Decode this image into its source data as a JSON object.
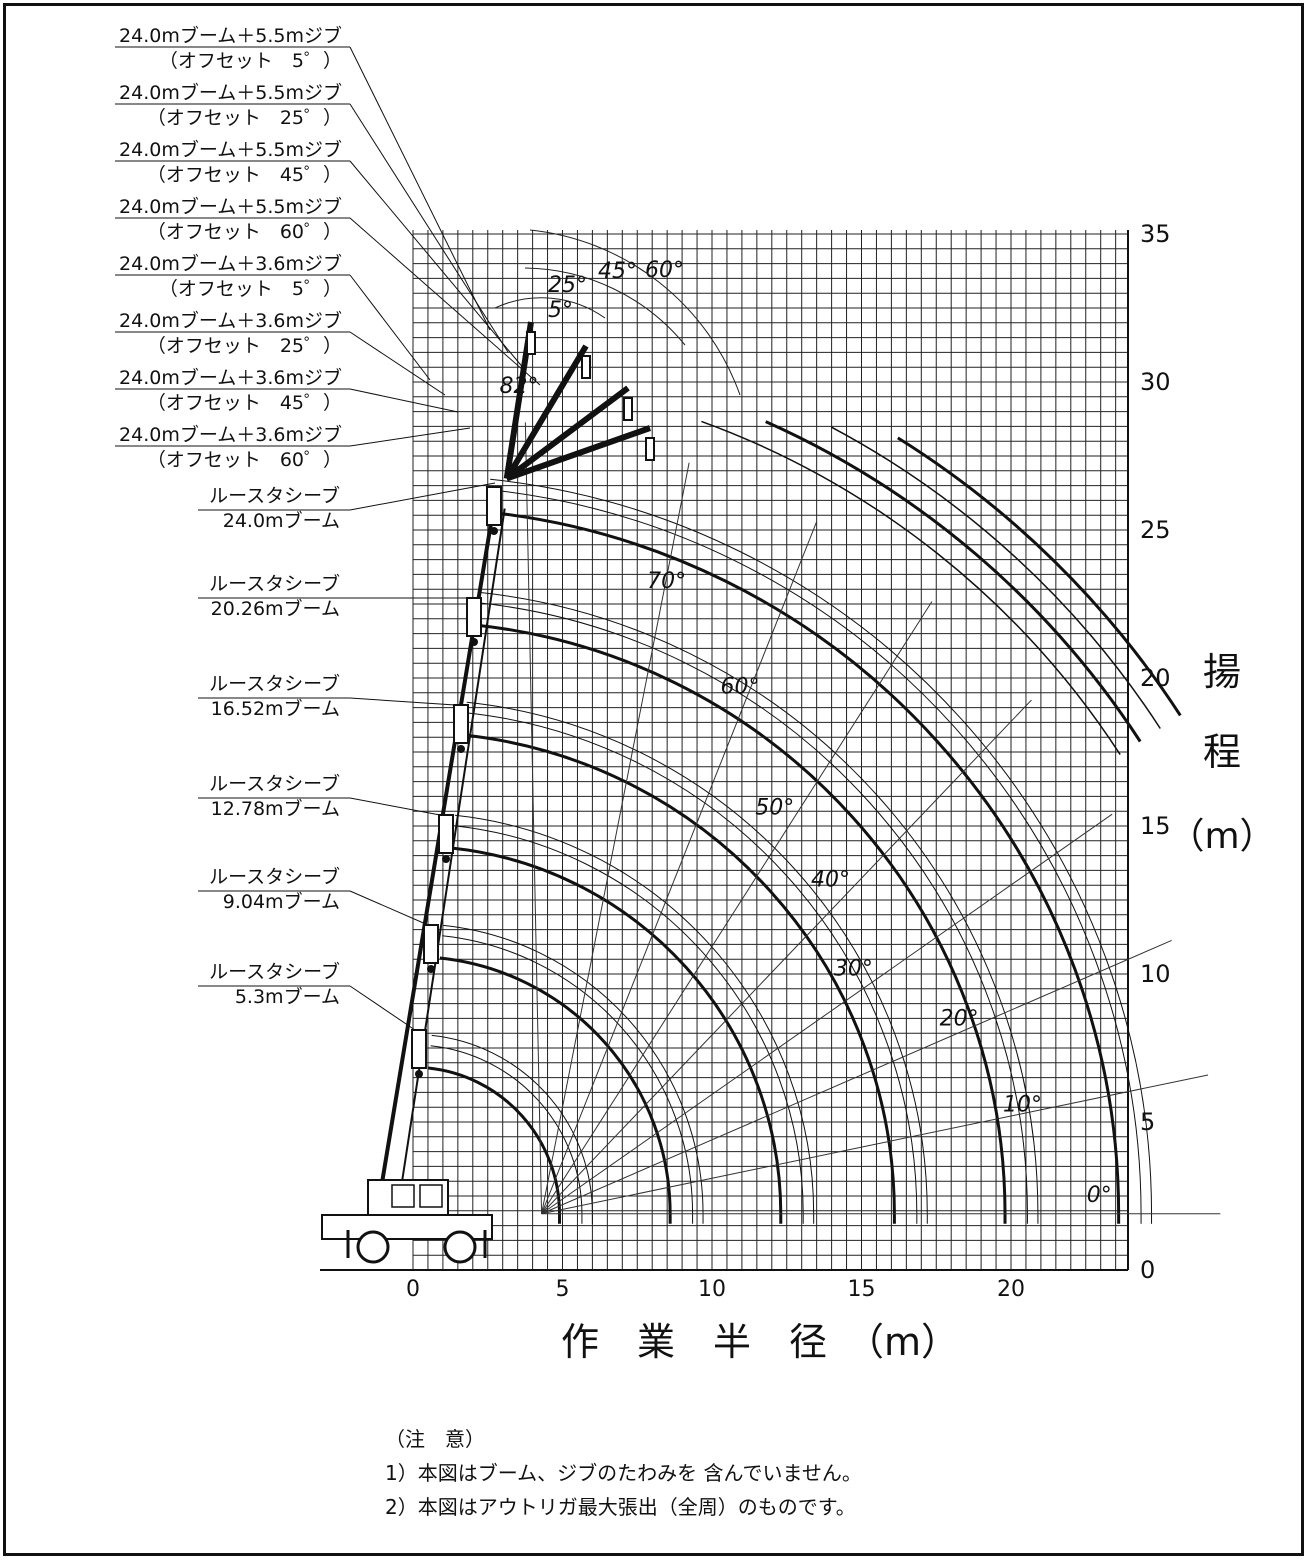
{
  "labels_left": [
    {
      "line1": "24.0mブーム＋5.5mジブ",
      "line2": "（オフセット　5゜）"
    },
    {
      "line1": "24.0mブーム＋5.5mジブ",
      "line2": "（オフセット　25゜）"
    },
    {
      "line1": "24.0mブーム＋5.5mジブ",
      "line2": "（オフセット　45゜）"
    },
    {
      "line1": "24.0mブーム＋5.5mジブ",
      "line2": "（オフセット　60゜）"
    },
    {
      "line1": "24.0mブーム＋3.6mジブ",
      "line2": "（オフセット　5゜）"
    },
    {
      "line1": "24.0mブーム＋3.6mジブ",
      "line2": "（オフセット　25゜）"
    },
    {
      "line1": "24.0mブーム＋3.6mジブ",
      "line2": "（オフセット　45゜）"
    },
    {
      "line1": "24.0mブーム＋3.6mジブ",
      "line2": "（オフセット　60゜）"
    }
  ],
  "boom_labels": [
    {
      "line1": "ルースタシーブ",
      "line2": "24.0mブーム",
      "length": 24.0
    },
    {
      "line1": "ルースタシーブ",
      "line2": "20.26mブーム",
      "length": 20.26
    },
    {
      "line1": "ルースタシーブ",
      "line2": "16.52mブーム",
      "length": 16.52
    },
    {
      "line1": "ルースタシーブ",
      "line2": "12.78mブーム",
      "length": 12.78
    },
    {
      "line1": "ルースタシーブ",
      "line2": "9.04mブーム",
      "length": 9.04
    },
    {
      "line1": "ルースタシーブ",
      "line2": "5.3mブーム",
      "length": 5.3
    }
  ],
  "angle_labels": [
    "82°",
    "70°",
    "60°",
    "50°",
    "40°",
    "30°",
    "20°",
    "10°",
    "0°"
  ],
  "angle_values": [
    82,
    70,
    60,
    50,
    40,
    30,
    20,
    10,
    0
  ],
  "offset_labels": [
    "60°",
    "45°",
    "25°",
    "5°"
  ],
  "offset_values": [
    60,
    45,
    25,
    5
  ],
  "x_axis": {
    "title": "作　業　半　径　（m）",
    "ticks": [
      "0",
      "5",
      "10",
      "15",
      "20"
    ],
    "tick_values": [
      0,
      5,
      10,
      15,
      20
    ],
    "min": -3,
    "max": 24
  },
  "y_axis": {
    "title_chars": [
      "揚",
      "程"
    ],
    "unit": "（m）",
    "ticks": [
      "0",
      "5",
      "10",
      "15",
      "20",
      "25",
      "30",
      "35"
    ],
    "tick_values": [
      0,
      5,
      10,
      15,
      20,
      25,
      30,
      35
    ],
    "min": 0,
    "max": 35
  },
  "boom_foot": {
    "x": 0,
    "y": 1.9
  },
  "notes": {
    "heading": "（注　意）",
    "items": [
      "1）本図はブーム、ジブのたわみを 含んでいません。",
      "2）本図はアウトリガ最大張出（全周）のものです。"
    ]
  }
}
